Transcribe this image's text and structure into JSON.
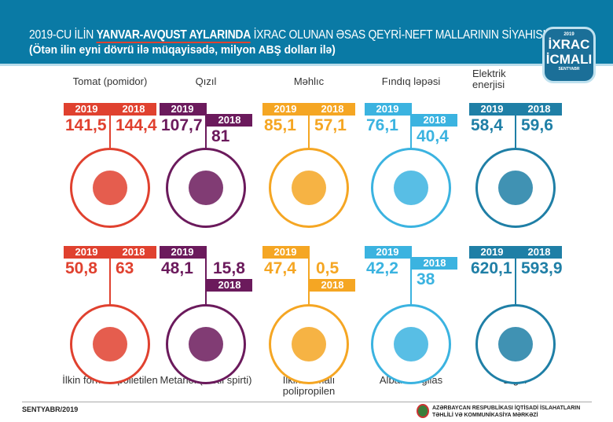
{
  "header": {
    "title_pre": "2019-CU İLİN ",
    "title_bold": "YANVAR-AVQUST AYLARINDA",
    "title_post": " İXRAC OLUNAN ƏSAS QEYRİ-NEFT MALLARININ SİYAHISI",
    "subtitle": "(Ötən ilin eyni dövrü ilə müqayisədə, milyon ABŞ dolları ilə)"
  },
  "badge": {
    "year": "2019",
    "line1": "İXRAC",
    "line2": "İCMALI",
    "sub": "SENTYABR"
  },
  "year_a": "2019",
  "year_b": "2018",
  "items": [
    {
      "name": "Tomat (pomidor)",
      "v2019": "141,5",
      "v2018": "144,4",
      "color": "#e0412f",
      "icon": "tomato-icon"
    },
    {
      "name": "Qızıl",
      "v2019": "107,7",
      "v2018": "81",
      "color": "#6b1a5c",
      "icon": "gold-bars-icon"
    },
    {
      "name": "Məhlıc",
      "v2019": "85,1",
      "v2018": "57,1",
      "color": "#f5a623",
      "icon": "cotton-icon"
    },
    {
      "name": "Fındıq ləpəsi",
      "v2019": "76,1",
      "v2018": "40,4",
      "color": "#3bb3e0",
      "icon": "hazelnut-icon"
    },
    {
      "name": "Elektrik enerjisi",
      "v2019": "58,4",
      "v2018": "59,6",
      "color": "#1f7fa6",
      "icon": "light-bulb-icon"
    },
    {
      "name": "İlkin formalı polietilen",
      "v2019": "50,8",
      "v2018": "63",
      "color": "#e0412f",
      "icon": "polyethylene-granules-icon"
    },
    {
      "name": "Metanol (metil spirti)",
      "v2019": "48,1",
      "v2018": "15,8",
      "color": "#6b1a5c",
      "icon": "methanol-molecule-icon"
    },
    {
      "name": "İlkin formalı polipropilen",
      "v2019": "47,4",
      "v2018": "0,5",
      "color": "#f5a623",
      "icon": "polypropylene-granules-icon"
    },
    {
      "name": "Albalı və gilas",
      "v2019": "42,2",
      "v2018": "38",
      "color": "#3bb3e0",
      "icon": "cherry-icon"
    },
    {
      "name": "Digər",
      "v2019": "620,1",
      "v2018": "593,9",
      "color": "#1f7fa6",
      "icon": "containers-icon"
    }
  ],
  "footer": {
    "date": "SENTYABR/2019",
    "org_line1": "AZƏRBAYCAN RESPUBLİKASI İQTİSADİ İSLAHATLARIN",
    "org_line2": "TƏHLİLİ VƏ KOMMUNİKASİYA MƏRKƏZİ"
  }
}
